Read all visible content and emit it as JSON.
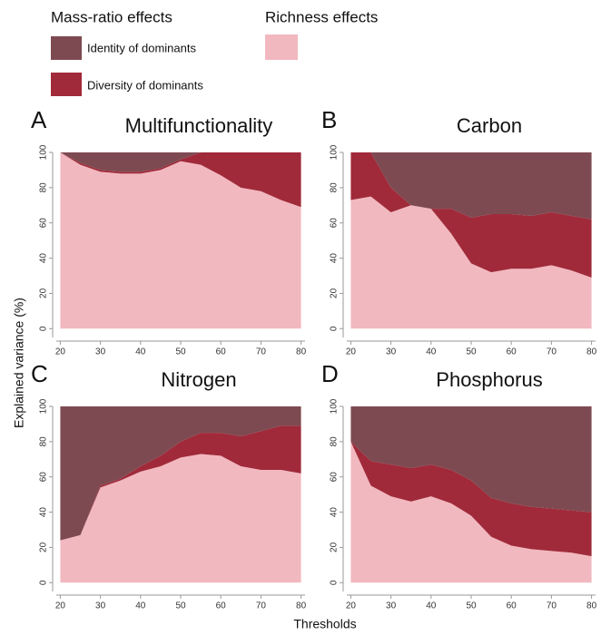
{
  "legend": {
    "groups": [
      {
        "title": "Mass-ratio effects",
        "items": [
          {
            "name": "Identity of dominants",
            "color": "#7e4a52"
          },
          {
            "name": "Diversity of dominants",
            "color": "#a02a3a"
          }
        ]
      },
      {
        "title": "Richness effects",
        "items": [
          {
            "color": "#f2b8bf"
          }
        ]
      }
    ]
  },
  "ylabel": "Explained variance (%)",
  "xlabel": "Thresholds",
  "chart_data": [
    {
      "type": "area",
      "stacked": true,
      "label": "A",
      "title": "Multifunctionality",
      "x": [
        20,
        25,
        30,
        35,
        40,
        45,
        50,
        55,
        60,
        65,
        70,
        75,
        80
      ],
      "series": [
        {
          "color": "#f2b8bf",
          "values": [
            100,
            93,
            89,
            88,
            88,
            90,
            95,
            93,
            87,
            80,
            78,
            73,
            69
          ]
        },
        {
          "color": "#a02a3a",
          "values": [
            0,
            1,
            1,
            1,
            1,
            1,
            1,
            7,
            13,
            20,
            22,
            27,
            31
          ]
        },
        {
          "color": "#7e4a52",
          "values": [
            0,
            6,
            10,
            11,
            11,
            9,
            4,
            0,
            0,
            0,
            0,
            0,
            0
          ]
        }
      ],
      "xlim": [
        19,
        81
      ],
      "ylim": [
        -5,
        100
      ],
      "xticks": [
        20,
        30,
        40,
        50,
        60,
        70,
        80
      ],
      "yticks": [
        0,
        20,
        40,
        60,
        80,
        100
      ]
    },
    {
      "type": "area",
      "stacked": true,
      "label": "B",
      "title": "Carbon",
      "x": [
        20,
        25,
        30,
        35,
        40,
        45,
        50,
        55,
        60,
        65,
        70,
        75,
        80
      ],
      "series": [
        {
          "color": "#f2b8bf",
          "values": [
            73,
            75,
            66,
            70,
            68,
            54,
            37,
            32,
            34,
            34,
            36,
            33,
            29
          ]
        },
        {
          "color": "#a02a3a",
          "values": [
            27,
            25,
            14,
            0,
            0,
            14,
            26,
            33,
            31,
            30,
            30,
            31,
            33
          ]
        },
        {
          "color": "#7e4a52",
          "values": [
            0,
            0,
            20,
            30,
            32,
            32,
            37,
            35,
            35,
            36,
            34,
            36,
            38
          ]
        }
      ],
      "xlim": [
        19,
        81
      ],
      "ylim": [
        -5,
        100
      ],
      "xticks": [
        20,
        30,
        40,
        50,
        60,
        70,
        80
      ],
      "yticks": [
        0,
        20,
        40,
        60,
        80,
        100
      ]
    },
    {
      "type": "area",
      "stacked": true,
      "label": "C",
      "title": "Nitrogen",
      "x": [
        20,
        25,
        30,
        35,
        40,
        45,
        50,
        55,
        60,
        65,
        70,
        75,
        80
      ],
      "series": [
        {
          "color": "#f2b8bf",
          "values": [
            24,
            27,
            54,
            58,
            63,
            66,
            71,
            73,
            72,
            66,
            64,
            64,
            62
          ]
        },
        {
          "color": "#a02a3a",
          "values": [
            0,
            0,
            1,
            1,
            3,
            6,
            9,
            12,
            13,
            17,
            22,
            25,
            27
          ]
        },
        {
          "color": "#7e4a52",
          "values": [
            76,
            73,
            45,
            41,
            34,
            28,
            20,
            15,
            15,
            17,
            14,
            11,
            11
          ]
        }
      ],
      "xlim": [
        19,
        81
      ],
      "ylim": [
        -5,
        100
      ],
      "xticks": [
        20,
        30,
        40,
        50,
        60,
        70,
        80
      ],
      "yticks": [
        0,
        20,
        40,
        60,
        80,
        100
      ]
    },
    {
      "type": "area",
      "stacked": true,
      "label": "D",
      "title": "Phosphorus",
      "x": [
        20,
        25,
        30,
        35,
        40,
        45,
        50,
        55,
        60,
        65,
        70,
        75,
        80
      ],
      "series": [
        {
          "color": "#f2b8bf",
          "values": [
            80,
            55,
            49,
            46,
            49,
            45,
            38,
            26,
            21,
            19,
            18,
            17,
            15
          ]
        },
        {
          "color": "#a02a3a",
          "values": [
            0,
            14,
            18,
            19,
            18,
            19,
            20,
            22,
            24,
            24,
            24,
            24,
            25
          ]
        },
        {
          "color": "#7e4a52",
          "values": [
            20,
            31,
            33,
            35,
            33,
            36,
            42,
            52,
            55,
            57,
            58,
            59,
            60
          ]
        }
      ],
      "xlim": [
        19,
        81
      ],
      "ylim": [
        -5,
        100
      ],
      "xticks": [
        20,
        30,
        40,
        50,
        60,
        70,
        80
      ],
      "yticks": [
        0,
        20,
        40,
        60,
        80,
        100
      ]
    }
  ]
}
